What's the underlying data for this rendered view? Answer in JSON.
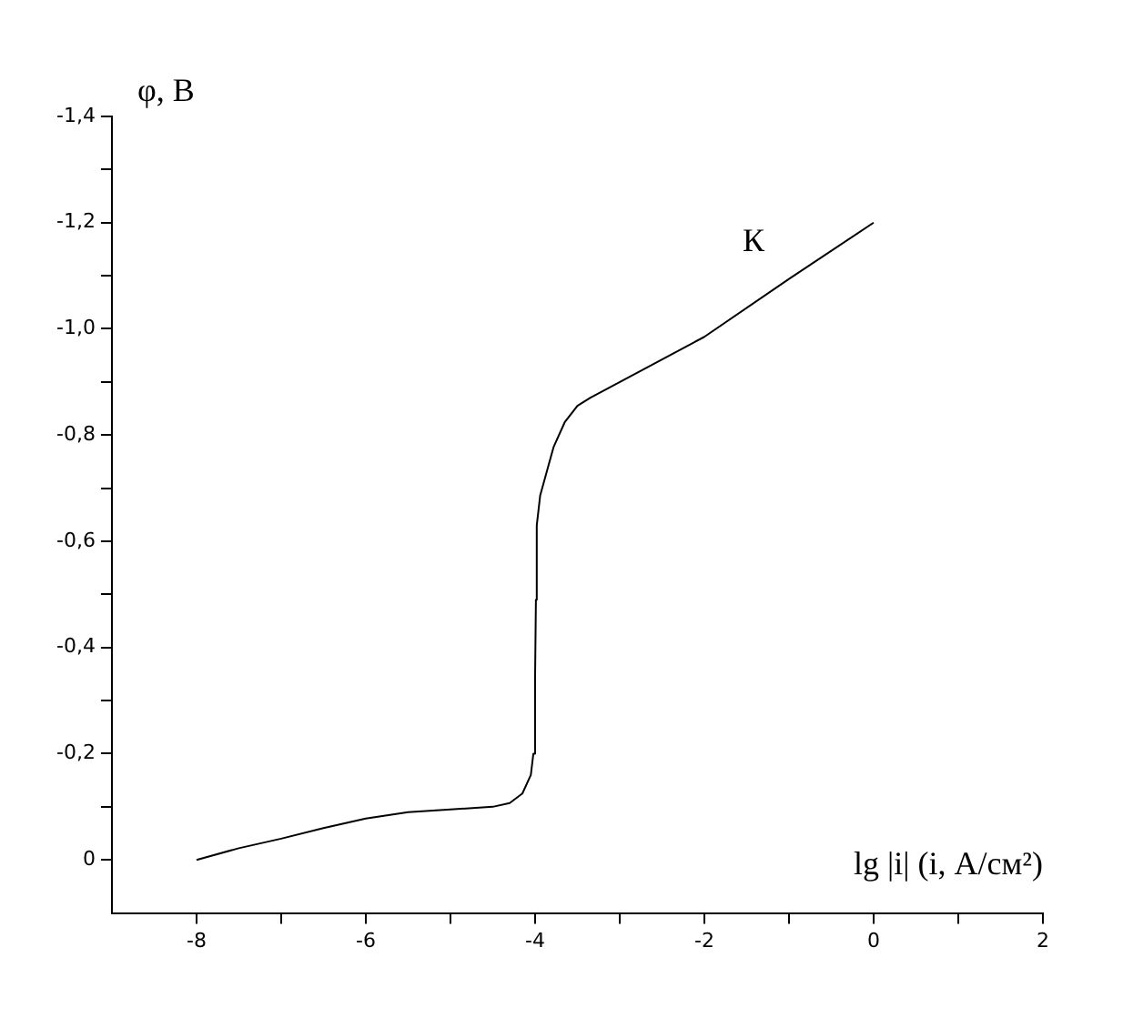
{
  "chart_data": {
    "type": "line",
    "xlabel": "lg |i| (i, А/см²)",
    "ylabel": "φ, В",
    "xlim": [
      -9,
      2
    ],
    "xticks": [
      -8,
      {
        "value": -7,
        "label": null
      },
      -6,
      {
        "value": -5,
        "label": null
      },
      -4,
      {
        "value": -3,
        "label": null
      },
      -2,
      {
        "value": -1,
        "label": null
      },
      0,
      {
        "value": 1,
        "label": null
      },
      2
    ],
    "ylim": [
      0.1,
      -1.4
    ],
    "yticks": [
      0,
      {
        "value": -0.1,
        "label": null
      },
      {
        "value": -0.2,
        "label": "-0,2"
      },
      {
        "value": -0.3,
        "label": null
      },
      {
        "value": -0.4,
        "label": "-0,4"
      },
      {
        "value": -0.5,
        "label": null
      },
      {
        "value": -0.6,
        "label": "-0,6"
      },
      {
        "value": -0.7,
        "label": null
      },
      {
        "value": -0.8,
        "label": "-0,8"
      },
      {
        "value": -0.9,
        "label": null
      },
      {
        "value": -1.0,
        "label": "-1,0"
      },
      {
        "value": -1.1,
        "label": null
      },
      {
        "value": -1.2,
        "label": "-1,2"
      },
      {
        "value": -1.3,
        "label": null
      },
      {
        "value": -1.4,
        "label": "-1,4"
      }
    ],
    "grid": false,
    "legend": false,
    "marker": "none",
    "line_style": "solid",
    "series": [
      {
        "color": "#000000",
        "x": [
          -8,
          -7.5,
          -7,
          -6.5,
          -6,
          -5.5,
          -5,
          -4.5,
          -4.3,
          -4.15,
          -4.05,
          -4.02,
          -4.0,
          -3.99,
          -3.98,
          -3.94,
          -3.85,
          -3.78,
          -3.65,
          -3.5,
          -3.35,
          -2,
          -1,
          0
        ],
        "values": [
          0,
          -0.022,
          -0.04,
          -0.06,
          -0.078,
          -0.09,
          -0.095,
          -0.1,
          -0.107,
          -0.125,
          -0.16,
          -0.2,
          -0.341,
          -0.49,
          -0.63,
          -0.686,
          -0.738,
          -0.778,
          -0.824,
          -0.855,
          -0.87,
          -0.985,
          -1.094,
          -1.2
        ]
      }
    ],
    "annotations": [
      "К"
    ]
  }
}
